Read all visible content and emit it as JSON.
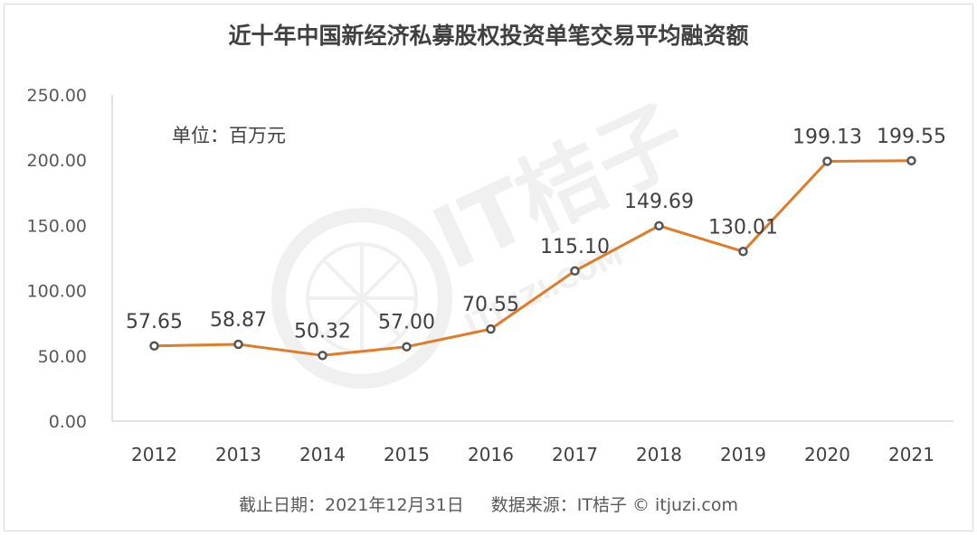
{
  "title": "近十年中国新经济私募股权投资单笔交易平均融资额",
  "unit_label": "单位：百万元",
  "footer": {
    "date_note": "截止日期：2021年12月31日",
    "source_note": "数据来源：IT桔子 © itjuzi.com"
  },
  "watermark": {
    "brand": "IT桔子",
    "site": "ITJUZI.COM"
  },
  "colors": {
    "line": "#E07B28",
    "marker_fill": "#ffffff",
    "marker_stroke": "#555555",
    "axis": "#d9d9d9"
  },
  "chart_data": {
    "type": "line",
    "title": "近十年中国新经济私募股权投资单笔交易平均融资额",
    "xlabel": "",
    "ylabel": "",
    "categories": [
      "2012",
      "2013",
      "2014",
      "2015",
      "2016",
      "2017",
      "2018",
      "2019",
      "2020",
      "2021"
    ],
    "values": [
      57.65,
      58.87,
      50.32,
      57.0,
      70.55,
      115.1,
      149.69,
      130.01,
      199.13,
      199.55
    ],
    "data_labels": [
      "57.65",
      "58.87",
      "50.32",
      "57.00",
      "70.55",
      "115.10",
      "149.69",
      "130.01",
      "199.13",
      "199.55"
    ],
    "ylim": [
      0,
      250
    ],
    "yticks": [
      "0.00",
      "50.00",
      "100.00",
      "150.00",
      "200.00",
      "250.00"
    ],
    "grid": false,
    "legend": "none"
  }
}
